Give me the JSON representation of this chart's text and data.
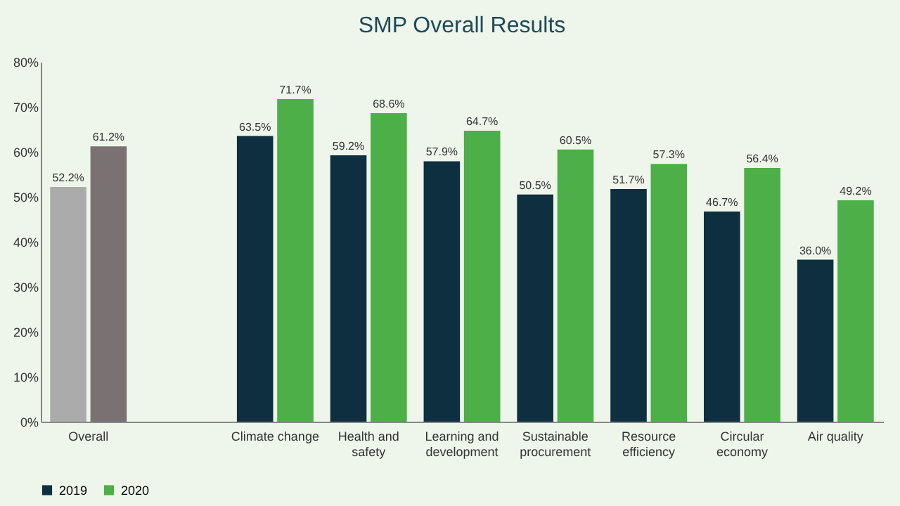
{
  "chart_data": {
    "type": "bar",
    "title": "SMP Overall Results",
    "categories": [
      "Overall",
      null,
      "Climate change",
      "Health and safety",
      "Learning and development",
      "Sustainable procurement",
      "Resource efficiency",
      "Circular economy",
      "Air quality"
    ],
    "series": [
      {
        "name": "2019",
        "color": "#0d2f3f",
        "colors": [
          "#ababab",
          null,
          "#0d2f3f",
          "#0d2f3f",
          "#0d2f3f",
          "#0d2f3f",
          "#0d2f3f",
          "#0d2f3f",
          "#0d2f3f"
        ],
        "values": [
          52.2,
          null,
          63.5,
          59.2,
          57.9,
          50.5,
          51.7,
          46.7,
          36.0
        ],
        "value_labels": [
          "52.2%",
          null,
          "63.5%",
          "59.2%",
          "57.9%",
          "50.5%",
          "51.7%",
          "46.7%",
          "36.0%"
        ]
      },
      {
        "name": "2020",
        "color": "#4caf47",
        "colors": [
          "#7a7272",
          null,
          "#4caf47",
          "#4caf47",
          "#4caf47",
          "#4caf47",
          "#4caf47",
          "#4caf47",
          "#4caf47"
        ],
        "values": [
          61.2,
          null,
          71.7,
          68.6,
          64.7,
          60.5,
          57.3,
          56.4,
          49.2
        ],
        "value_labels": [
          "61.2%",
          null,
          "71.7%",
          "68.6%",
          "64.7%",
          "60.5%",
          "57.3%",
          "56.4%",
          "49.2%"
        ]
      }
    ],
    "ylim": [
      0,
      80
    ],
    "yticks": [
      {
        "value": 0,
        "label": "0%"
      },
      {
        "value": 10,
        "label": "10%"
      },
      {
        "value": 20,
        "label": "20%"
      },
      {
        "value": 30,
        "label": "30%"
      },
      {
        "value": 40,
        "label": "40%"
      },
      {
        "value": 50,
        "label": "50%"
      },
      {
        "value": 60,
        "label": "60%"
      },
      {
        "value": 70,
        "label": "70%"
      },
      {
        "value": 80,
        "label": "80%"
      }
    ],
    "grid": false,
    "legend": "bottom"
  }
}
